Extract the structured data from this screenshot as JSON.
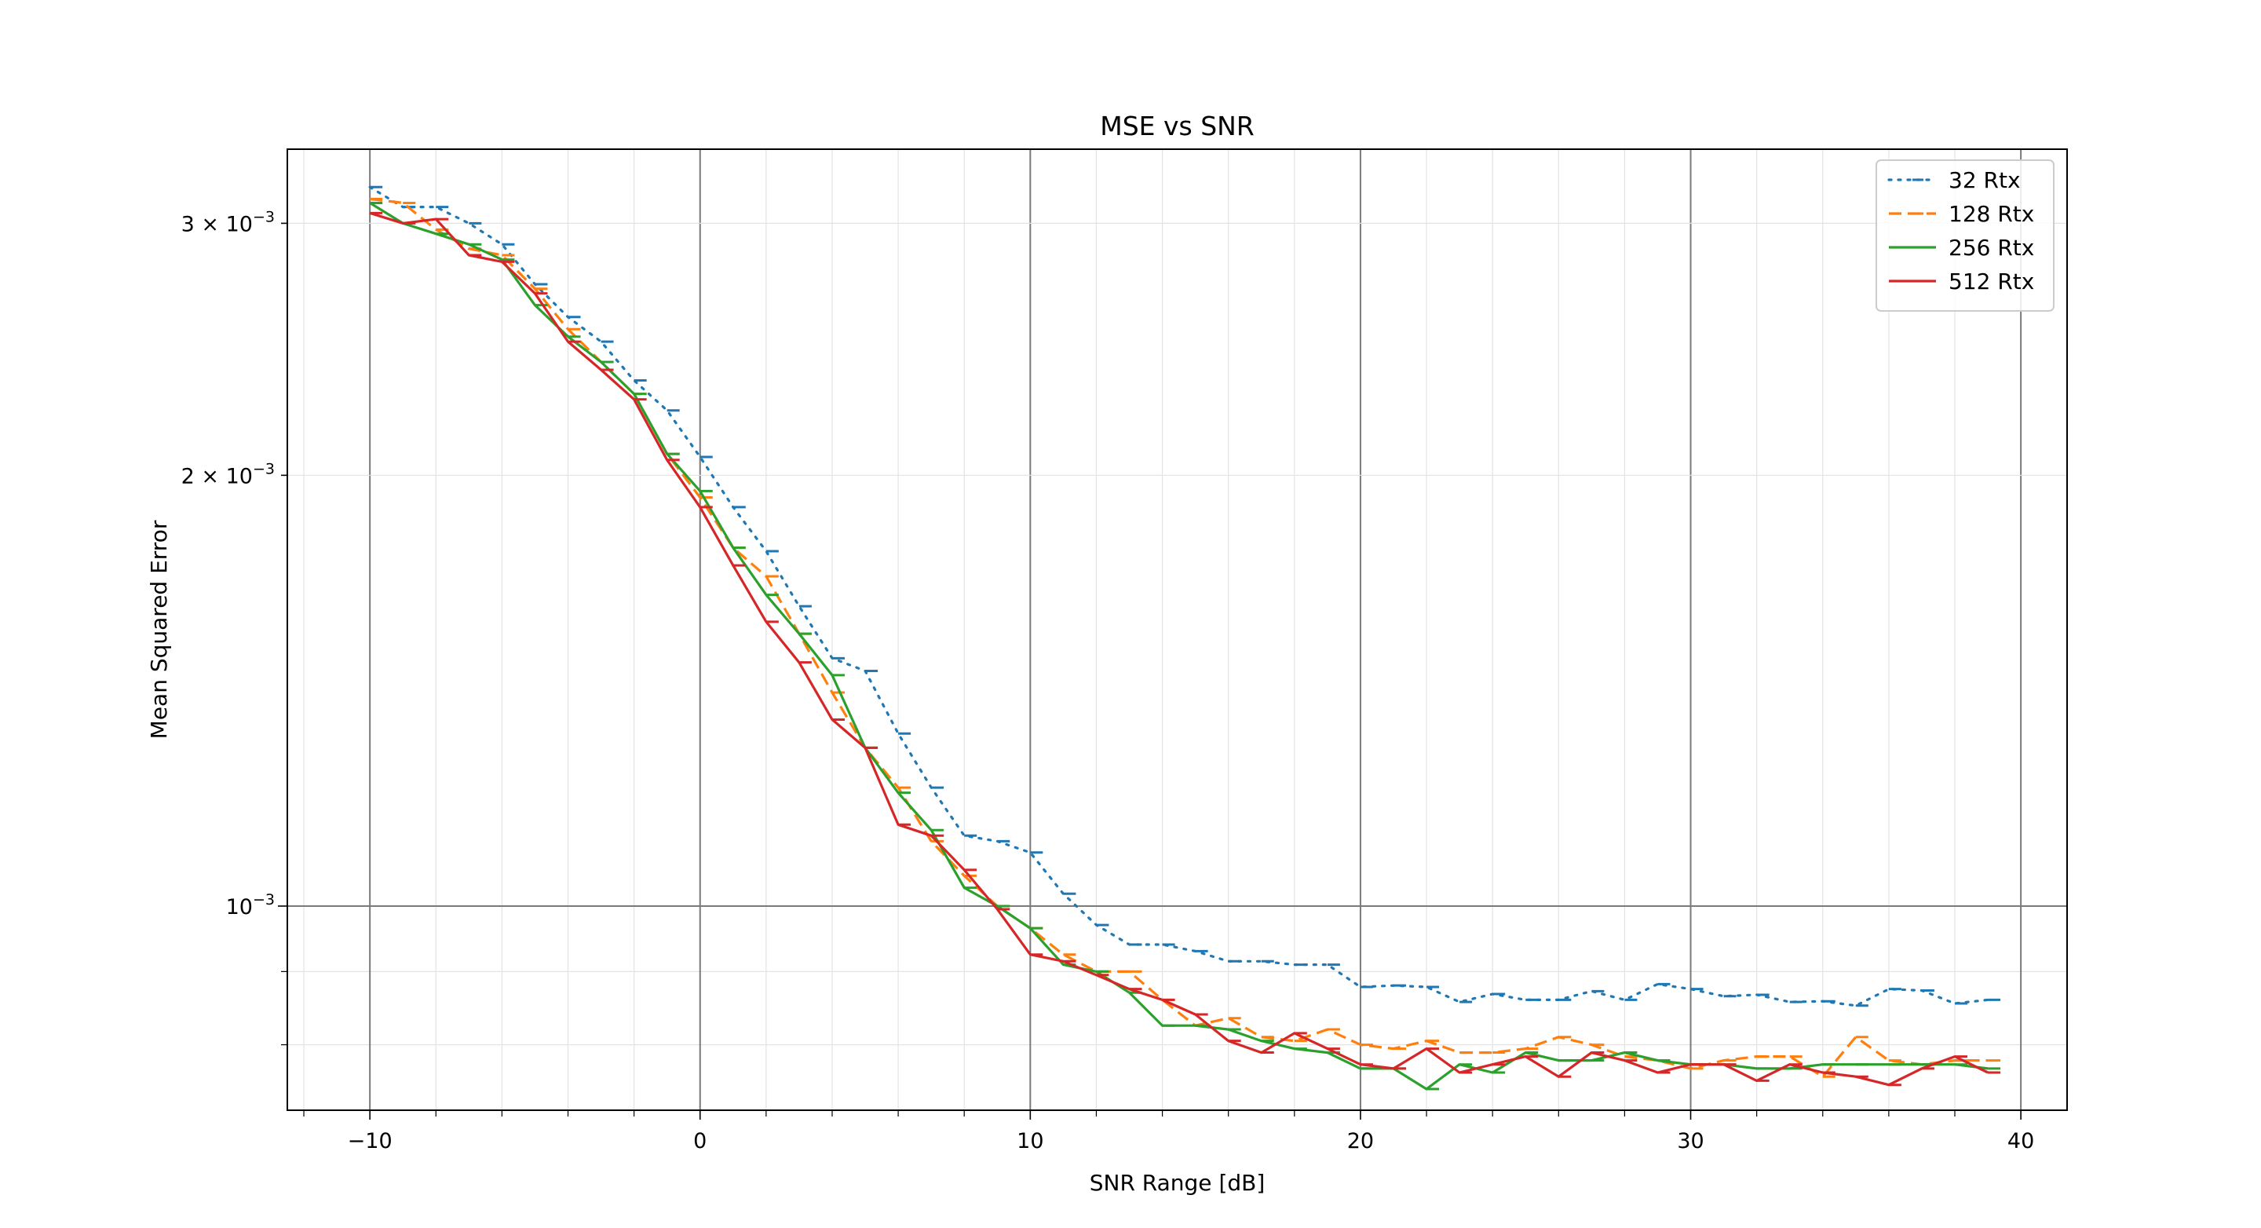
{
  "chart_data": {
    "type": "line",
    "title": "MSE vs SNR",
    "xlabel": "SNR Range [dB]",
    "ylabel": "Mean Squared Error",
    "xlim": [
      -12.5,
      41.4
    ],
    "ylim": [
      0.00072,
      0.00338
    ],
    "yscale": "log",
    "grid": "major and minor",
    "legend_position": "top-right",
    "x_ticks": [
      {
        "value": -10,
        "label": "−10"
      },
      {
        "value": 0,
        "label": "0"
      },
      {
        "value": 10,
        "label": "10"
      },
      {
        "value": 20,
        "label": "20"
      },
      {
        "value": 30,
        "label": "30"
      },
      {
        "value": 40,
        "label": "40"
      }
    ],
    "y_ticks": [
      {
        "value": 0.001,
        "base": "10",
        "exp": "−3",
        "coef": ""
      },
      {
        "value": 0.002,
        "base": "10",
        "exp": "−3",
        "coef": "2 × "
      },
      {
        "value": 0.003,
        "base": "10",
        "exp": "−3",
        "coef": "3 × "
      }
    ],
    "x": [
      -10,
      -9,
      -8,
      -7,
      -6,
      -5,
      -4,
      -3,
      -2,
      -1,
      0,
      1,
      2,
      3,
      4,
      5,
      6,
      7,
      8,
      9,
      10,
      11,
      12,
      13,
      14,
      15,
      16,
      17,
      18,
      19,
      20,
      21,
      22,
      23,
      24,
      25,
      26,
      27,
      28,
      29,
      30,
      31,
      32,
      33,
      34,
      35,
      36,
      37,
      38,
      39
    ],
    "series": [
      {
        "name": "32 Rtx",
        "color": "#1f77b4",
        "style": "dotted",
        "values": [
          0.00318,
          0.00308,
          0.00308,
          0.003,
          0.0029,
          0.00272,
          0.00258,
          0.00248,
          0.00233,
          0.00222,
          0.00206,
          0.0019,
          0.00177,
          0.00162,
          0.00149,
          0.00146,
          0.00132,
          0.00121,
          0.00112,
          0.00111,
          0.00109,
          0.00102,
          0.00097,
          0.00094,
          0.00094,
          0.00093,
          0.000915,
          0.000915,
          0.00091,
          0.00091,
          0.000878,
          0.00088,
          0.000878,
          0.000857,
          0.000868,
          0.00086,
          0.00086,
          0.000872,
          0.00086,
          0.000882,
          0.000875,
          0.000865,
          0.000867,
          0.000857,
          0.000858,
          0.000852,
          0.000875,
          0.000873,
          0.000855,
          0.00086
        ]
      },
      {
        "name": "128 Rtx",
        "color": "#ff7f0e",
        "style": "dashed",
        "values": [
          0.00312,
          0.0031,
          0.00297,
          0.00288,
          0.00285,
          0.0027,
          0.00253,
          0.0024,
          0.00228,
          0.00207,
          0.00193,
          0.00178,
          0.0017,
          0.00155,
          0.00141,
          0.00129,
          0.00121,
          0.00111,
          0.00105,
          0.001,
          0.000965,
          0.000925,
          0.0009,
          0.0009,
          0.00086,
          0.000825,
          0.000835,
          0.00081,
          0.000805,
          0.00082,
          0.0008,
          0.000795,
          0.000805,
          0.00079,
          0.00079,
          0.000795,
          0.00081,
          0.0008,
          0.000785,
          0.00078,
          0.00077,
          0.00078,
          0.000785,
          0.000785,
          0.00076,
          0.00081,
          0.00078,
          0.000775,
          0.00078,
          0.00078
        ]
      },
      {
        "name": "256 Rtx",
        "color": "#2ca02c",
        "style": "solid",
        "values": [
          0.0031,
          0.003,
          0.00295,
          0.0029,
          0.00283,
          0.00263,
          0.0025,
          0.0024,
          0.00228,
          0.00207,
          0.00195,
          0.00178,
          0.00165,
          0.00155,
          0.00145,
          0.00129,
          0.0012,
          0.00113,
          0.00103,
          0.001,
          0.000965,
          0.00091,
          0.0009,
          0.00087,
          0.000825,
          0.000825,
          0.00082,
          0.000805,
          0.000795,
          0.00079,
          0.00077,
          0.00077,
          0.000745,
          0.000775,
          0.000765,
          0.00079,
          0.00078,
          0.00078,
          0.00079,
          0.00078,
          0.000775,
          0.000775,
          0.00077,
          0.00077,
          0.000775,
          0.000775,
          0.000775,
          0.000775,
          0.000775,
          0.00077
        ]
      },
      {
        "name": "512 Rtx",
        "color": "#d62728",
        "style": "solid",
        "values": [
          0.00305,
          0.003,
          0.00302,
          0.00285,
          0.00282,
          0.00268,
          0.00248,
          0.00237,
          0.00226,
          0.00205,
          0.0019,
          0.00173,
          0.00158,
          0.00148,
          0.00135,
          0.00129,
          0.00114,
          0.00112,
          0.00106,
          0.000995,
          0.000925,
          0.000915,
          0.000895,
          0.000875,
          0.00086,
          0.00084,
          0.000805,
          0.00079,
          0.000815,
          0.000795,
          0.000775,
          0.00077,
          0.000795,
          0.000765,
          0.000775,
          0.000785,
          0.00076,
          0.00079,
          0.00078,
          0.000765,
          0.000775,
          0.000775,
          0.000755,
          0.000775,
          0.000765,
          0.00076,
          0.00075,
          0.00077,
          0.000785,
          0.000765
        ]
      }
    ]
  }
}
